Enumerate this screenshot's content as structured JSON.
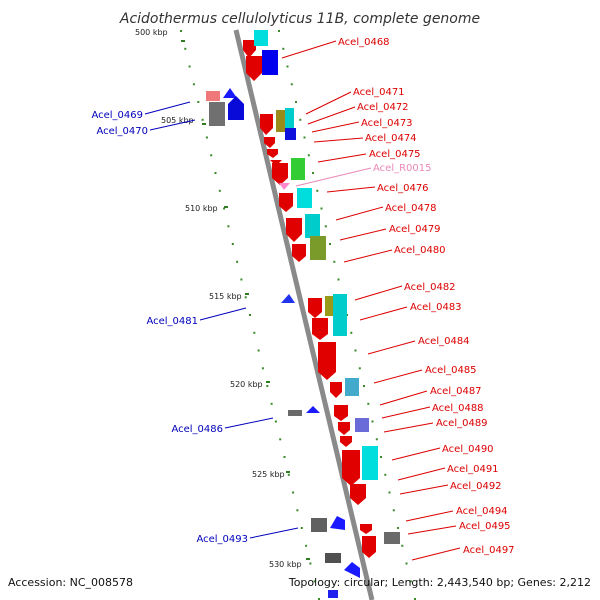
{
  "title": "Acidothermus cellulolyticus 11B, complete genome",
  "footer": {
    "accession": "Accession: NC_008578",
    "summary": "Topology: circular; Length: 2,443,540 bp; Genes: 2,212"
  },
  "colors": {
    "backbone": "#8a8a8a",
    "tick": "#2e7d1e",
    "dot": "#3a8a2a",
    "forward_label": "#dd0000",
    "reverse_label": "#0000bb",
    "rna_label": "#e888b8"
  },
  "ticks": [
    {
      "label": "500 kbp"
    },
    {
      "label": "505 kbp"
    },
    {
      "label": "510 kbp"
    },
    {
      "label": "515 kbp"
    },
    {
      "label": "520 kbp"
    },
    {
      "label": "525 kbp"
    },
    {
      "label": "530 kbp"
    }
  ],
  "genes_forward": [
    {
      "label": "Acel_0468"
    },
    {
      "label": "Acel_0471"
    },
    {
      "label": "Acel_0472"
    },
    {
      "label": "Acel_0473"
    },
    {
      "label": "Acel_0474"
    },
    {
      "label": "Acel_0475"
    },
    {
      "label": "Acel_R0015"
    },
    {
      "label": "Acel_0476"
    },
    {
      "label": "Acel_0478"
    },
    {
      "label": "Acel_0479"
    },
    {
      "label": "Acel_0480"
    },
    {
      "label": "Acel_0482"
    },
    {
      "label": "Acel_0483"
    },
    {
      "label": "Acel_0484"
    },
    {
      "label": "Acel_0485"
    },
    {
      "label": "Acel_0487"
    },
    {
      "label": "Acel_0488"
    },
    {
      "label": "Acel_0489"
    },
    {
      "label": "Acel_0490"
    },
    {
      "label": "Acel_0491"
    },
    {
      "label": "Acel_0492"
    },
    {
      "label": "Acel_0494"
    },
    {
      "label": "Acel_0495"
    },
    {
      "label": "Acel_0497"
    }
  ],
  "genes_reverse": [
    {
      "label": "Acel_0469"
    },
    {
      "label": "Acel_0470"
    },
    {
      "label": "Acel_0481"
    },
    {
      "label": "Acel_0486"
    },
    {
      "label": "Acel_0493"
    }
  ]
}
